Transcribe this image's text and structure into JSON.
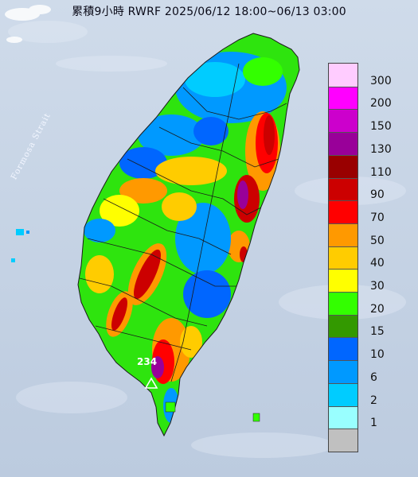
{
  "title": "累積9小時 RWRF 2025/06/12 18:00~06/13 03:00",
  "strait_label": "Formosa Strait",
  "max_label": "234",
  "legend": {
    "items": [
      {
        "label": "300",
        "color": "#ffccff"
      },
      {
        "label": "200",
        "color": "#ff00ff"
      },
      {
        "label": "150",
        "color": "#cc00cc"
      },
      {
        "label": "130",
        "color": "#990099"
      },
      {
        "label": "110",
        "color": "#990000"
      },
      {
        "label": "90",
        "color": "#cc0000"
      },
      {
        "label": "70",
        "color": "#ff0000"
      },
      {
        "label": "50",
        "color": "#ff9900"
      },
      {
        "label": "40",
        "color": "#ffcc00"
      },
      {
        "label": "30",
        "color": "#ffff00"
      },
      {
        "label": "20",
        "color": "#33ff00"
      },
      {
        "label": "15",
        "color": "#339900"
      },
      {
        "label": "10",
        "color": "#0066ff"
      },
      {
        "label": "6",
        "color": "#0099ff"
      },
      {
        "label": "2",
        "color": "#00ccff"
      },
      {
        "label": "1",
        "color": "#99ffff"
      },
      {
        "label": "",
        "color": "#c0c0c0"
      }
    ]
  }
}
